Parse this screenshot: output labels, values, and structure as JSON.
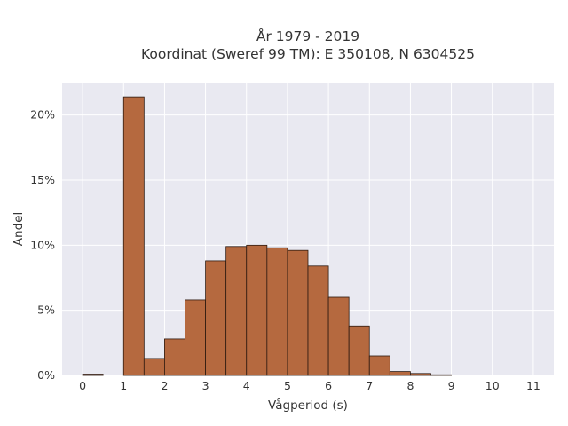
{
  "chart_data": {
    "type": "bar",
    "title_line1": "År 1979 - 2019",
    "title_line2": "Koordinat (Sweref 99 TM): E 350108, N 6304525",
    "xlabel": "Vågperiod (s)",
    "ylabel": "Andel",
    "bin_width": 0.5,
    "bin_starts": [
      0,
      0.5,
      1,
      1.5,
      2,
      2.5,
      3,
      3.5,
      4,
      4.5,
      5,
      5.5,
      6,
      6.5,
      7,
      7.5,
      8,
      8.5,
      9,
      9.5,
      10,
      10.5,
      11
    ],
    "values": [
      0.1,
      0,
      21.4,
      1.3,
      2.8,
      5.8,
      8.8,
      9.9,
      10.0,
      9.8,
      9.6,
      8.4,
      6.0,
      3.8,
      1.5,
      0.3,
      0.15,
      0.05,
      0,
      0,
      0,
      0,
      0
    ],
    "xlim": [
      -0.5,
      11.5
    ],
    "ylim": [
      0,
      22.5
    ],
    "x_ticks": [
      0,
      1,
      2,
      3,
      4,
      5,
      6,
      7,
      8,
      9,
      10,
      11
    ],
    "x_tick_labels": [
      "0",
      "1",
      "2",
      "3",
      "4",
      "5",
      "6",
      "7",
      "8",
      "9",
      "10",
      "11"
    ],
    "y_ticks": [
      0,
      5,
      10,
      15,
      20
    ],
    "y_tick_labels": [
      "0%",
      "5%",
      "10%",
      "15%",
      "20%"
    ],
    "grid": true,
    "colors": {
      "bar_fill": "#b5693f",
      "bar_edge": "#2e1a10",
      "plot_background": "#e9e9f1",
      "grid": "#ffffff",
      "text": "#333333"
    }
  }
}
